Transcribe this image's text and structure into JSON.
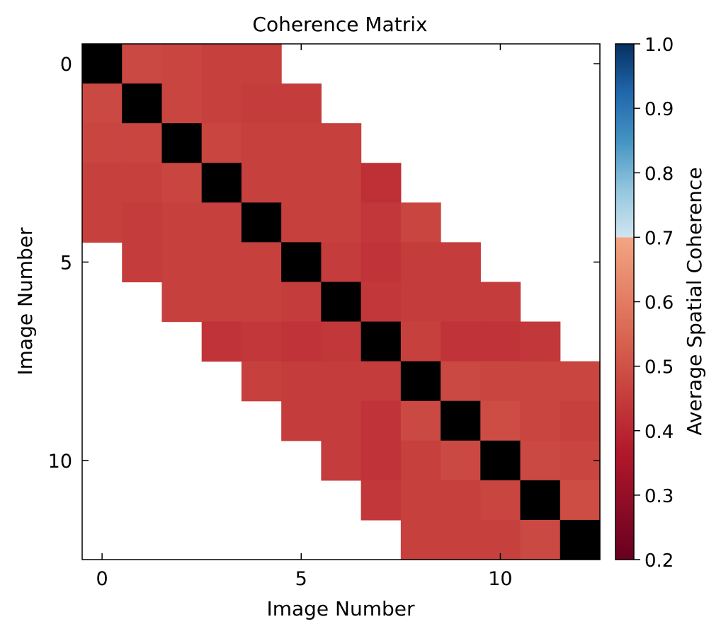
{
  "chart_data": {
    "type": "heatmap",
    "title": "Coherence Matrix",
    "xlabel": "Image Number",
    "ylabel": "Image Number",
    "xlim": [
      -0.5,
      12.5
    ],
    "ylim": [
      12.5,
      -0.5
    ],
    "x_ticks": [
      0,
      5,
      10
    ],
    "y_ticks": [
      0,
      5,
      10
    ],
    "n": 13,
    "diagonal_color": "#000000",
    "grid": false,
    "matrix": [
      [
        null,
        0.48,
        0.47,
        0.46,
        0.46,
        null,
        null,
        null,
        null,
        null,
        null,
        null,
        null
      ],
      [
        0.48,
        null,
        0.47,
        0.46,
        0.45,
        0.45,
        null,
        null,
        null,
        null,
        null,
        null,
        null
      ],
      [
        0.47,
        0.47,
        null,
        0.47,
        0.46,
        0.46,
        0.46,
        null,
        null,
        null,
        null,
        null,
        null
      ],
      [
        0.46,
        0.46,
        0.47,
        null,
        0.46,
        0.46,
        0.46,
        0.42,
        null,
        null,
        null,
        null,
        null
      ],
      [
        0.46,
        0.45,
        0.46,
        0.46,
        null,
        0.46,
        0.46,
        0.44,
        0.47,
        null,
        null,
        null,
        null
      ],
      [
        null,
        0.45,
        0.46,
        0.46,
        0.46,
        null,
        0.45,
        0.43,
        0.45,
        0.45,
        null,
        null,
        null
      ],
      [
        null,
        null,
        0.46,
        0.46,
        0.46,
        0.45,
        null,
        0.44,
        0.45,
        0.45,
        0.45,
        null,
        null
      ],
      [
        null,
        null,
        null,
        0.43,
        0.44,
        0.43,
        0.44,
        null,
        0.46,
        0.43,
        0.43,
        0.44,
        null
      ],
      [
        null,
        null,
        null,
        null,
        0.46,
        0.45,
        0.45,
        0.45,
        null,
        0.48,
        0.47,
        0.47,
        0.47
      ],
      [
        null,
        null,
        null,
        null,
        null,
        0.45,
        0.45,
        0.43,
        0.48,
        null,
        0.49,
        0.47,
        0.46
      ],
      [
        null,
        null,
        null,
        null,
        null,
        null,
        0.45,
        0.43,
        0.46,
        0.48,
        null,
        0.48,
        0.47
      ],
      [
        null,
        null,
        null,
        null,
        null,
        null,
        null,
        0.44,
        0.46,
        0.46,
        0.47,
        null,
        0.49
      ],
      [
        null,
        null,
        null,
        null,
        null,
        null,
        null,
        null,
        0.46,
        0.46,
        0.46,
        0.48,
        null
      ]
    ],
    "colorbar": {
      "label": "Average Spatial Coherence",
      "vmin": 0.2,
      "vmax": 1.0,
      "ticks": [
        "0.2",
        "0.3",
        "0.4",
        "0.5",
        "0.6",
        "0.7",
        "0.8",
        "0.9",
        "1.0"
      ],
      "threshold": 0.7,
      "colors_low": [
        "#67001f",
        "#b2182b",
        "#d6604d",
        "#f4a582"
      ],
      "colors_high": [
        "#d1e5f0",
        "#92c5de",
        "#4393c3",
        "#2166ac",
        "#053061"
      ]
    }
  }
}
